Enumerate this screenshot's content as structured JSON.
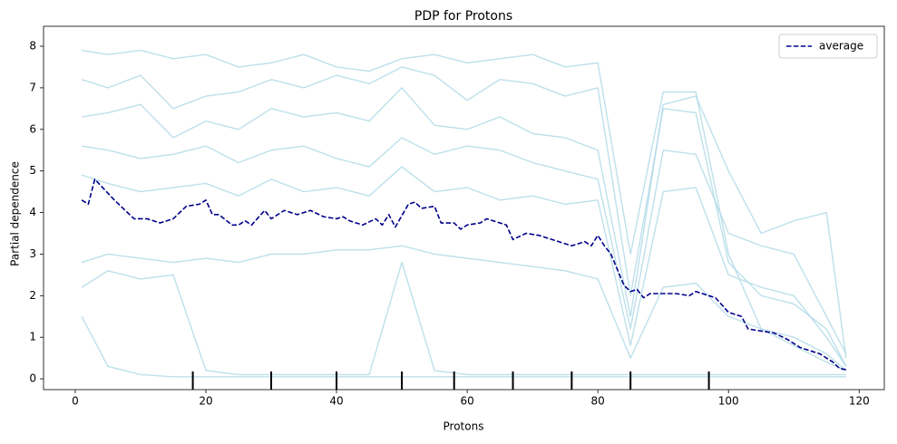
{
  "chart_data": {
    "type": "line",
    "title": "PDP for Protons",
    "x_label": "Protons",
    "y_label": "Partial dependence",
    "xlim": [
      -4.85,
      123.85
    ],
    "ylim": [
      -0.26,
      8.48
    ],
    "xticks": [
      0,
      20,
      40,
      60,
      80,
      100,
      120
    ],
    "yticks": [
      0,
      1,
      2,
      3,
      4,
      5,
      6,
      7,
      8
    ],
    "legend": "upper right",
    "series": [
      {
        "color": "#add8e6",
        "x": [
          1,
          5,
          10,
          15,
          20,
          25,
          30,
          35,
          40,
          45,
          50,
          55,
          60,
          65,
          70,
          75,
          80,
          85,
          90,
          95,
          100,
          105,
          110,
          115,
          118
        ],
        "values": [
          7.9,
          7.8,
          7.9,
          7.7,
          7.8,
          7.5,
          7.6,
          7.8,
          7.5,
          7.4,
          7.7,
          7.8,
          7.6,
          7.7,
          7.8,
          7.5,
          7.6,
          3.0,
          6.9,
          6.9,
          3.0,
          1.2,
          0.8,
          0.4,
          0.2
        ]
      },
      {
        "color": "#add8e6",
        "x": [
          1,
          5,
          10,
          15,
          20,
          25,
          30,
          35,
          40,
          45,
          50,
          55,
          60,
          65,
          70,
          75,
          80,
          85,
          90,
          95,
          100,
          105,
          110,
          115,
          118
        ],
        "values": [
          7.2,
          7.0,
          7.3,
          6.5,
          6.8,
          6.9,
          7.2,
          7.0,
          7.3,
          7.1,
          7.5,
          7.3,
          6.7,
          7.2,
          7.1,
          6.8,
          7.0,
          2.0,
          6.5,
          6.4,
          2.8,
          2.0,
          1.8,
          1.2,
          0.3
        ]
      },
      {
        "color": "#add8e6",
        "x": [
          1,
          5,
          10,
          15,
          20,
          25,
          30,
          35,
          40,
          45,
          50,
          55,
          60,
          65,
          70,
          75,
          80,
          85,
          90,
          95,
          100,
          105,
          110,
          115,
          118
        ],
        "values": [
          6.3,
          6.4,
          6.6,
          5.8,
          6.2,
          6.0,
          6.5,
          6.3,
          6.4,
          6.2,
          7.0,
          6.1,
          6.0,
          6.3,
          5.9,
          5.8,
          5.5,
          1.5,
          6.6,
          6.8,
          5.0,
          3.5,
          3.8,
          4.0,
          0.5
        ]
      },
      {
        "color": "#add8e6",
        "x": [
          1,
          5,
          10,
          15,
          20,
          25,
          30,
          35,
          40,
          45,
          50,
          55,
          60,
          65,
          70,
          75,
          80,
          85,
          90,
          95,
          100,
          105,
          110,
          115,
          118
        ],
        "values": [
          5.6,
          5.5,
          5.3,
          5.4,
          5.6,
          5.2,
          5.5,
          5.6,
          5.3,
          5.1,
          5.8,
          5.4,
          5.6,
          5.5,
          5.2,
          5.0,
          4.8,
          1.2,
          5.5,
          5.4,
          3.5,
          3.2,
          3.0,
          1.5,
          0.6
        ]
      },
      {
        "color": "#add8e6",
        "x": [
          1,
          5,
          10,
          15,
          20,
          25,
          30,
          35,
          40,
          45,
          50,
          55,
          60,
          65,
          70,
          75,
          80,
          85,
          90,
          95,
          100,
          105,
          110,
          115,
          118
        ],
        "values": [
          4.9,
          4.7,
          4.5,
          4.6,
          4.7,
          4.4,
          4.8,
          4.5,
          4.6,
          4.4,
          5.1,
          4.5,
          4.6,
          4.3,
          4.4,
          4.2,
          4.3,
          0.8,
          4.5,
          4.6,
          2.5,
          2.2,
          2.0,
          1.0,
          0.3
        ]
      },
      {
        "color": "#add8e6",
        "x": [
          1,
          5,
          10,
          15,
          20,
          25,
          30,
          35,
          40,
          45,
          50,
          55,
          60,
          65,
          70,
          75,
          80,
          85,
          90,
          95,
          100,
          105,
          110,
          115,
          118
        ],
        "values": [
          2.8,
          3.0,
          2.9,
          2.8,
          2.9,
          2.8,
          3.0,
          3.0,
          3.1,
          3.1,
          3.2,
          3.0,
          2.9,
          2.8,
          2.7,
          2.6,
          2.4,
          0.5,
          2.2,
          2.3,
          1.5,
          1.2,
          1.0,
          0.6,
          0.2
        ]
      },
      {
        "color": "#add8e6",
        "x": [
          1,
          5,
          10,
          15,
          20,
          25,
          30,
          35,
          40,
          45,
          50,
          55,
          60,
          65,
          70,
          75,
          80,
          85,
          90,
          95,
          100,
          105,
          110,
          115,
          118
        ],
        "values": [
          2.2,
          2.6,
          2.4,
          2.5,
          0.2,
          0.1,
          0.1,
          0.1,
          0.1,
          0.1,
          2.8,
          0.2,
          0.1,
          0.1,
          0.1,
          0.1,
          0.1,
          0.1,
          0.1,
          0.1,
          0.1,
          0.1,
          0.1,
          0.1,
          0.1
        ]
      },
      {
        "color": "#add8e6",
        "x": [
          1,
          5,
          10,
          15,
          20,
          25,
          30,
          35,
          40,
          45,
          50,
          55,
          60,
          65,
          70,
          75,
          80,
          85,
          90,
          95,
          100,
          105,
          110,
          115,
          118
        ],
        "values": [
          1.5,
          0.3,
          0.1,
          0.05,
          0.05,
          0.05,
          0.05,
          0.05,
          0.05,
          0.05,
          0.05,
          0.05,
          0.05,
          0.05,
          0.05,
          0.05,
          0.05,
          0.05,
          0.05,
          0.05,
          0.05,
          0.05,
          0.05,
          0.05,
          0.05
        ]
      },
      {
        "name": "average",
        "color": "#00008b",
        "dashed": true,
        "x": [
          1,
          2,
          3,
          6,
          9,
          11,
          13,
          15,
          17,
          19,
          20,
          21,
          22,
          24,
          25,
          26,
          27,
          29,
          30,
          31,
          32,
          34,
          36,
          38,
          40,
          41,
          42,
          44,
          46,
          47,
          48,
          49,
          51,
          52,
          53,
          55,
          56,
          58,
          59,
          60,
          62,
          63,
          64,
          66,
          67,
          69,
          71,
          72,
          74,
          76,
          78,
          79,
          80,
          81,
          82,
          84,
          85,
          86,
          87,
          88,
          92,
          94,
          95,
          96,
          98,
          100,
          102,
          103,
          105,
          107,
          109,
          111,
          114,
          116,
          117,
          118
        ],
        "values": [
          4.3,
          4.2,
          4.8,
          4.3,
          3.85,
          3.85,
          3.75,
          3.85,
          4.15,
          4.2,
          4.3,
          3.95,
          3.95,
          3.7,
          3.7,
          3.8,
          3.7,
          4.05,
          3.85,
          3.95,
          4.05,
          3.95,
          4.05,
          3.9,
          3.85,
          3.9,
          3.8,
          3.7,
          3.85,
          3.7,
          3.95,
          3.65,
          4.2,
          4.25,
          4.1,
          4.15,
          3.75,
          3.75,
          3.6,
          3.7,
          3.75,
          3.85,
          3.8,
          3.7,
          3.35,
          3.5,
          3.45,
          3.4,
          3.3,
          3.2,
          3.3,
          3.2,
          3.45,
          3.2,
          3.0,
          2.25,
          2.1,
          2.15,
          1.95,
          2.05,
          2.05,
          2.0,
          2.1,
          2.05,
          1.95,
          1.6,
          1.5,
          1.2,
          1.15,
          1.1,
          0.95,
          0.75,
          0.6,
          0.4,
          0.25,
          0.22
        ]
      }
    ],
    "deciles": [
      18,
      30,
      40,
      50,
      58,
      67,
      76,
      85,
      97
    ]
  }
}
